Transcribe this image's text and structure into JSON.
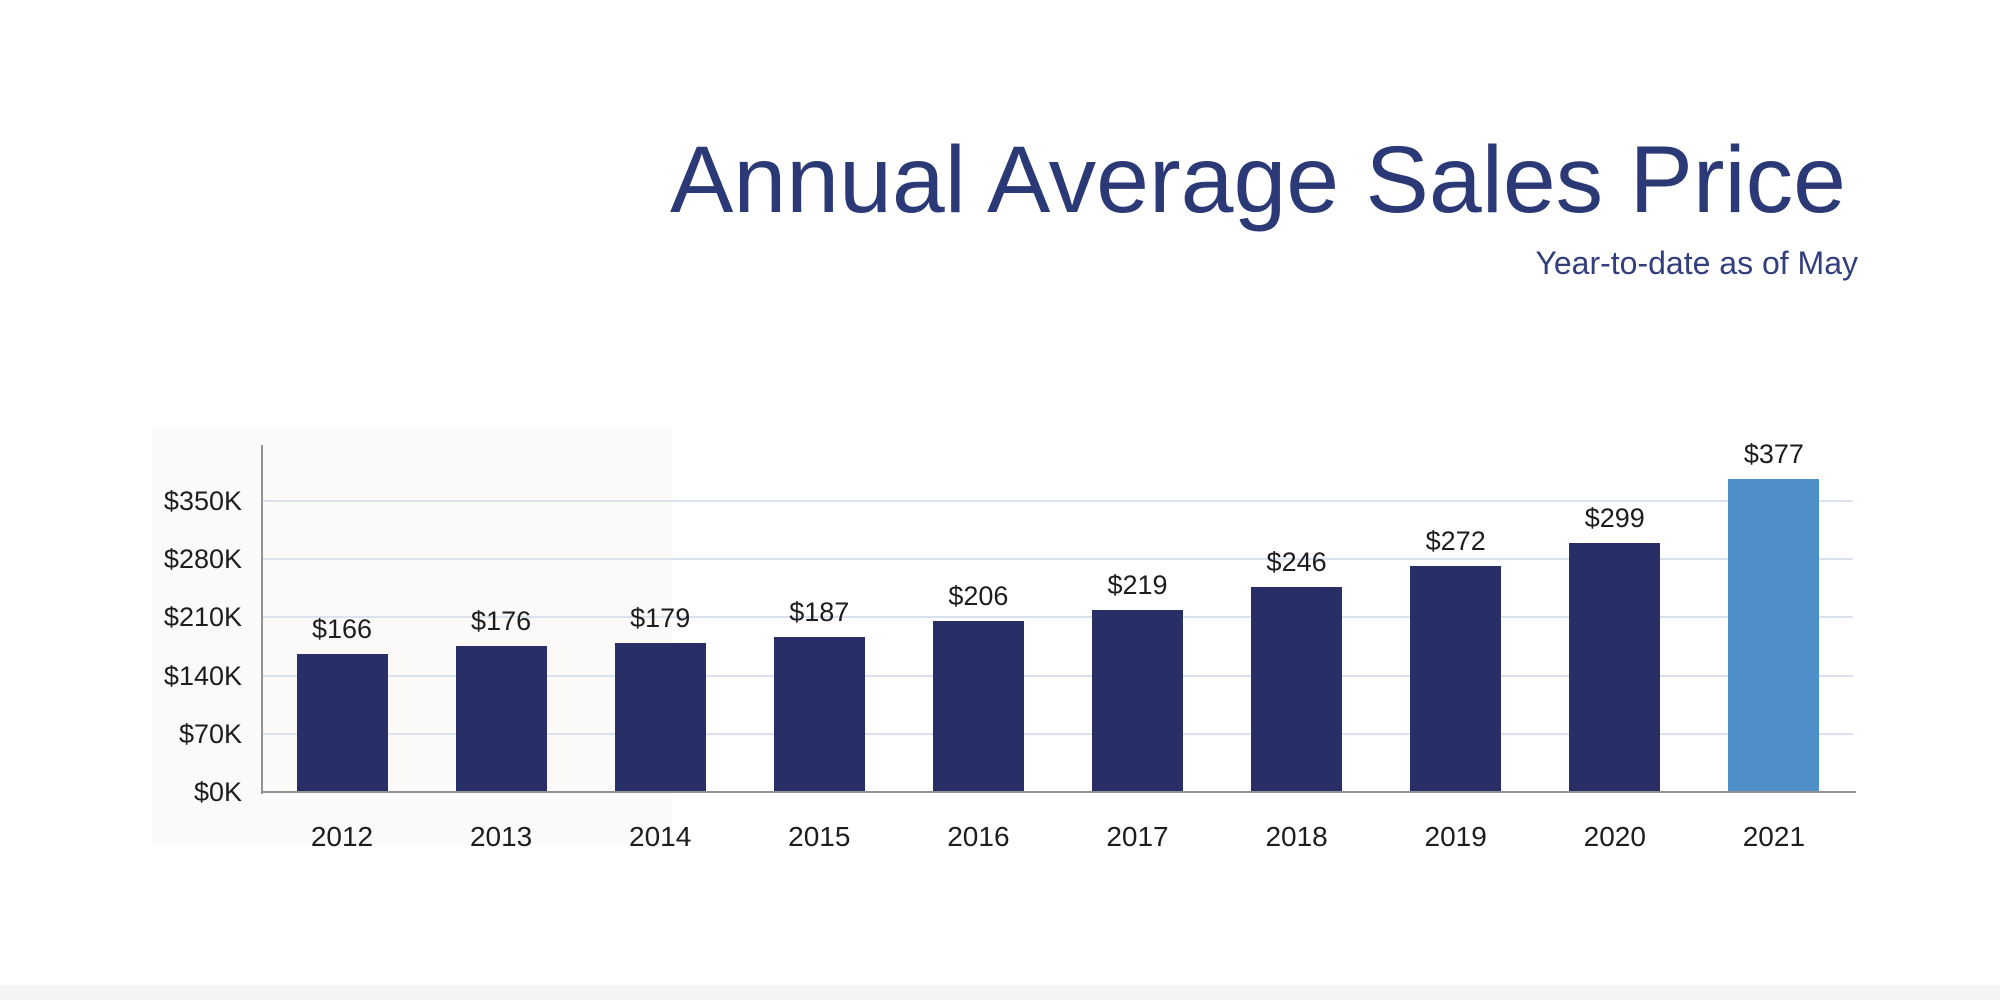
{
  "page": {
    "background_color": "#ffffff"
  },
  "header": {
    "title": "Annual Average Sales Price",
    "subtitle": "Year-to-date as of May",
    "title_color": "#2b3a77",
    "subtitle_color": "#323f7c"
  },
  "chart_data": {
    "type": "bar",
    "title": "Annual Average Sales Price",
    "subtitle": "Year-to-date as of May",
    "categories": [
      "2012",
      "2013",
      "2014",
      "2015",
      "2016",
      "2017",
      "2018",
      "2019",
      "2020",
      "2021"
    ],
    "values": [
      166,
      176,
      179,
      187,
      206,
      219,
      246,
      272,
      299,
      377
    ],
    "value_labels": [
      "$166",
      "$176",
      "$179",
      "$187",
      "$206",
      "$219",
      "$246",
      "$272",
      "$299",
      "$377"
    ],
    "unit": "thousands of dollars",
    "xlabel": "",
    "ylabel": "",
    "ylim": [
      0,
      420
    ],
    "y_ticks": {
      "values": [
        0,
        70,
        140,
        210,
        280,
        350
      ],
      "labels": [
        "$0K",
        "$70K",
        "$140K",
        "$210K",
        "$280K",
        "$350K"
      ]
    },
    "grid": "horizontal",
    "legend": "none",
    "bar_color": "#282f66",
    "highlight_color": "#4e8fca",
    "highlight_index": 9,
    "gridline_color": "#d9e2ee",
    "axis_color": "#929292",
    "label_color": "#1d1d1d"
  }
}
